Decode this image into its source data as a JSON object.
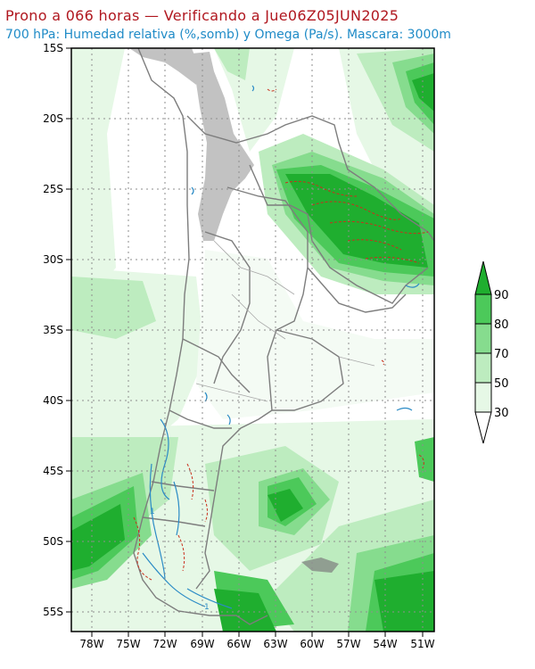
{
  "header": {
    "title": "Prono a 066 horas — Verificando a Jue06Z05JUN2025",
    "subtitle": "700 hPa: Humedad relativa (%,somb) y Omega (Pa/s). Mascara: 3000m"
  },
  "map": {
    "lat_labels": [
      "15S",
      "20S",
      "25S",
      "30S",
      "35S",
      "40S",
      "45S",
      "50S",
      "55S"
    ],
    "lon_labels": [
      "78W",
      "75W",
      "72W",
      "69W",
      "66W",
      "63W",
      "60W",
      "57W",
      "54W",
      "51W"
    ],
    "lat_range": [
      -56,
      -15
    ],
    "lon_range": [
      -80,
      -50
    ],
    "contour_label": "1"
  },
  "legend": {
    "levels": [
      "90",
      "80",
      "70",
      "50",
      "30"
    ],
    "colors": [
      "#1fae2f",
      "#4cc95a",
      "#86dc8e",
      "#bdecbf",
      "#e6f8e6"
    ]
  },
  "colors": {
    "title": "#b0171f",
    "subtitle": "#1f8bc7",
    "mask": "#c2c2c2",
    "borders": "#7d7d7d",
    "omega_positive": "#c9301c",
    "omega_negative": "#2b8bc6"
  }
}
